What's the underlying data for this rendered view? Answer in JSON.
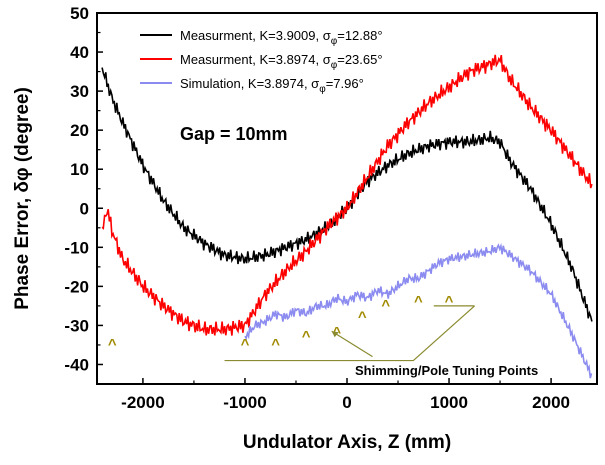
{
  "chart_data": {
    "type": "line",
    "xlabel": "Undulator Axis, Z (mm)",
    "ylabel": "Phase Error, δφ (degree)",
    "xlim": [
      -2450,
      2450
    ],
    "ylim": [
      -45,
      50
    ],
    "x_ticks": [
      "-2000",
      "-1000",
      "0",
      "1000",
      "2000"
    ],
    "x_tick_values": [
      -2000,
      -1000,
      0,
      1000,
      2000
    ],
    "y_ticks": [
      "50",
      "40",
      "30",
      "20",
      "10",
      "0",
      "-10",
      "-20",
      "-30",
      "-40"
    ],
    "y_tick_values": [
      50,
      40,
      30,
      20,
      10,
      0,
      -10,
      -20,
      -30,
      -40
    ],
    "grid": false,
    "legend_position": "top-center",
    "annotation": "Gap = 10mm",
    "tuning_label": "Shimming/Pole Tuning Points",
    "tuning_marker": "^",
    "tuning_points_x": [
      -2300,
      -1000,
      -700,
      -400,
      -100,
      150,
      380,
      700,
      1000
    ],
    "tuning_points_y": [
      -36,
      -36,
      -36,
      -34,
      -33,
      -29,
      -26,
      -25,
      -25
    ],
    "series": [
      {
        "name": "Measurment, K=3.9009, σφ=12.88°",
        "legend": {
          "prefix": "Measurment, K=3.9009, σ",
          "sub": "φ",
          "suffix": "=12.88°"
        },
        "color": "#000000",
        "noise": 1.6,
        "x": [
          -2400,
          -2300,
          -2200,
          -2000,
          -1800,
          -1600,
          -1400,
          -1200,
          -1000,
          -800,
          -600,
          -400,
          -200,
          0,
          200,
          400,
          600,
          800,
          1000,
          1200,
          1400,
          1500,
          1600,
          1800,
          2000,
          2200,
          2400
        ],
        "y": [
          36,
          28,
          22,
          11,
          2,
          -5,
          -9,
          -12,
          -13,
          -12,
          -10,
          -8,
          -5,
          0,
          7,
          11,
          14,
          16,
          17,
          17,
          18,
          17,
          12,
          5,
          -4,
          -15,
          -29
        ]
      },
      {
        "name": "Measurment, K=3.8974, σφ=23.65°",
        "legend": {
          "prefix": "Measurment, K=3.8974, σ",
          "sub": "φ",
          "suffix": "=23.65°"
        },
        "color": "#ff0000",
        "noise": 1.8,
        "x": [
          -2400,
          -2350,
          -2300,
          -2200,
          -2000,
          -1800,
          -1600,
          -1400,
          -1200,
          -1000,
          -800,
          -600,
          -400,
          -200,
          0,
          200,
          400,
          600,
          800,
          1000,
          1200,
          1400,
          1500,
          1600,
          1800,
          2000,
          2200,
          2400
        ],
        "y": [
          -6,
          0,
          -6,
          -13,
          -20,
          -25,
          -29,
          -31,
          -31,
          -30,
          -22,
          -16,
          -11,
          -5,
          0,
          8,
          16,
          22,
          27,
          31,
          35,
          37,
          38,
          33,
          26,
          20,
          13,
          6
        ]
      },
      {
        "name": "Simulation, K=3.8974, σφ=7.96°",
        "legend": {
          "prefix": "Simulation, K=3.8974, σ",
          "sub": "φ",
          "suffix": "=7.96°"
        },
        "color": "#8c8cf0",
        "noise": 1.2,
        "x": [
          -1000,
          -900,
          -800,
          -700,
          -600,
          -500,
          -400,
          -300,
          -200,
          -100,
          0,
          100,
          200,
          300,
          400,
          500,
          600,
          700,
          800,
          900,
          1000,
          1200,
          1400,
          1500,
          1600,
          1800,
          2000,
          2200,
          2400
        ],
        "y": [
          -33,
          -30,
          -29,
          -27,
          -28,
          -26,
          -27,
          -25,
          -25,
          -23,
          -24,
          -22,
          -23,
          -21,
          -22,
          -20,
          -18,
          -18,
          -16,
          -14,
          -13,
          -12,
          -11,
          -10,
          -12,
          -16,
          -22,
          -32,
          -43
        ]
      }
    ]
  }
}
